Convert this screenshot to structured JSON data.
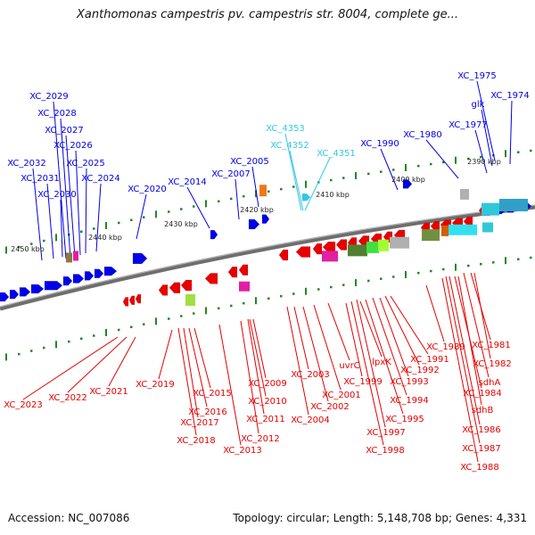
{
  "title": "Xanthomonas campestris pv. campestris str. 8004, complete ge...",
  "footer": {
    "accession": "Accession: NC_007086",
    "summary": "Topology: circular; Length: 5,148,708 bp; Genes: 4,331"
  },
  "colors": {
    "forward_gene": "#0000e6",
    "reverse_gene": "#e60000",
    "highlight_gene": "#33c8e6",
    "backbone": "#808080",
    "tick": "#228822"
  },
  "ruler": [
    "2450 kbp",
    "2440 kbp",
    "2430 kbp",
    "2420 kbp",
    "2410 kbp",
    "2400 kbp",
    "2390 kbp"
  ],
  "blue_labels": [
    "XC_2029",
    "XC_2028",
    "XC_2027",
    "XC_2026",
    "XC_2032",
    "XC_2025",
    "XC_2031",
    "XC_2024",
    "XC_2030",
    "XC_2020",
    "XC_2014",
    "XC_2007",
    "XC_2005",
    "XC_1990",
    "XC_1980",
    "XC_1977",
    "glk",
    "XC_1975",
    "XC_1974"
  ],
  "cyan_labels": [
    "XC_4353",
    "XC_4352",
    "XC_4351"
  ],
  "red_labels": [
    "XC_2023",
    "XC_2022",
    "XC_2021",
    "XC_2019",
    "XC_2015",
    "XC_2016",
    "XC_2017",
    "XC_2018",
    "XC_2013",
    "XC_2012",
    "XC_2011",
    "XC_2010",
    "XC_2009",
    "XC_2004",
    "XC_2003",
    "XC_2002",
    "XC_2001",
    "uvrC",
    "XC_1999",
    "XC_1998",
    "XC_1997",
    "XC_1995",
    "lpxK",
    "XC_1994",
    "XC_1993",
    "XC_1992",
    "XC_1991",
    "XC_1989",
    "XC_1981",
    "XC_1982",
    "sdhA",
    "XC_1984",
    "sdhB",
    "XC_1986",
    "XC_1987",
    "XC_1988"
  ]
}
